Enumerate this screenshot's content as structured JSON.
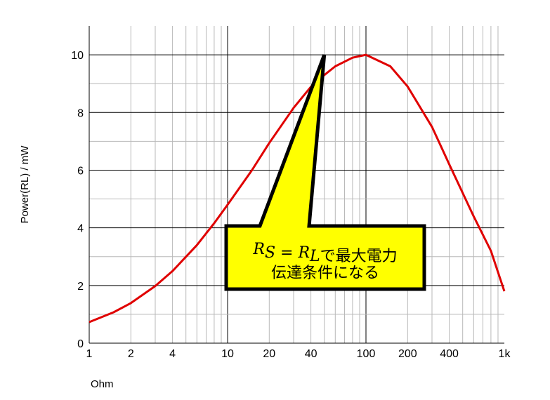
{
  "chart_data": {
    "type": "line",
    "x_scale": "log",
    "xlim": [
      1,
      1000
    ],
    "ylim": [
      0,
      11
    ],
    "xlabel": "Ohm",
    "ylabel": "Power(RL) / mW",
    "x_ticks": [
      1,
      2,
      4,
      10,
      20,
      40,
      100,
      200,
      400,
      1000
    ],
    "x_tick_labels": [
      "1",
      "2",
      "4",
      "10",
      "20",
      "40",
      "100",
      "200",
      "400",
      "1k"
    ],
    "y_ticks": [
      0,
      2,
      4,
      6,
      8,
      10
    ],
    "y_tick_labels": [
      "0",
      "2",
      "4",
      "6",
      "8",
      "10"
    ],
    "grid": true,
    "line_color": "#e00000",
    "series": [
      {
        "x": [
          1,
          1.5,
          2,
          3,
          4,
          6,
          8,
          10,
          15,
          20,
          30,
          40,
          50,
          60,
          80,
          100,
          150,
          200,
          300,
          400,
          600,
          800,
          1000
        ],
        "y": [
          0.73,
          1.07,
          1.39,
          1.98,
          2.5,
          3.4,
          4.16,
          4.8,
          6.0,
          6.94,
          8.16,
          8.89,
          9.3,
          9.6,
          9.9,
          10.0,
          9.6,
          8.9,
          7.5,
          6.2,
          4.4,
          3.2,
          1.8
        ]
      }
    ],
    "annotation": {
      "math_label": "R_S = R_L",
      "line1_suffix": "で最大電力",
      "line2": "伝達条件になる",
      "pointer_x": 50,
      "pointer_y": 10,
      "fill_color": "#ffff00",
      "border_color": "#000000"
    }
  }
}
